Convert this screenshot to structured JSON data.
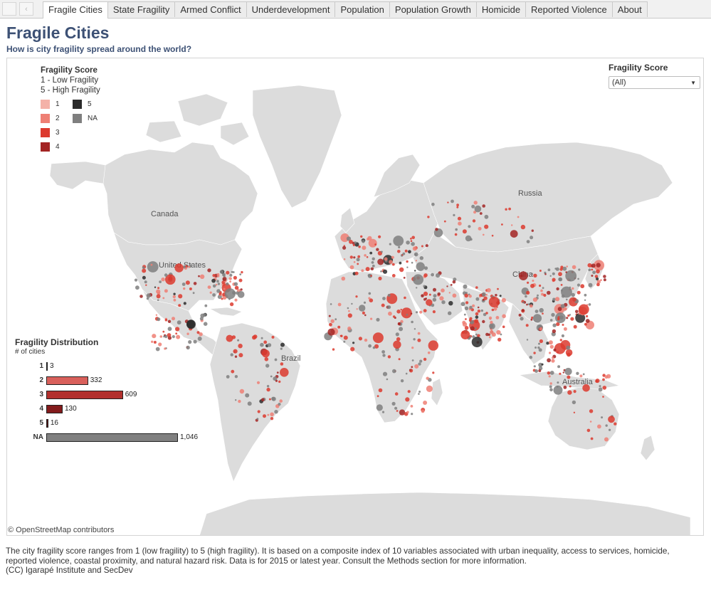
{
  "tabs": {
    "prev_label": "‹",
    "items": [
      {
        "label": "Fragile Cities",
        "active": true
      },
      {
        "label": "State Fragility",
        "active": false
      },
      {
        "label": "Armed Conflict",
        "active": false
      },
      {
        "label": "Underdevelopment",
        "active": false
      },
      {
        "label": "Population",
        "active": false
      },
      {
        "label": "Population Growth",
        "active": false
      },
      {
        "label": "Homicide",
        "active": false
      },
      {
        "label": "Reported Violence",
        "active": false
      },
      {
        "label": "About",
        "active": false
      }
    ]
  },
  "header": {
    "title": "Fragile Cities",
    "subtitle": "How is city fragility spread around the world?"
  },
  "legend": {
    "title": "Fragility Score",
    "line1": "1 - Low Fragility",
    "line2": "5 - High Fragility",
    "items": [
      {
        "label": "1",
        "color": "#f4b2a8"
      },
      {
        "label": "2",
        "color": "#ee7f74"
      },
      {
        "label": "3",
        "color": "#dc3a2e"
      },
      {
        "label": "4",
        "color": "#a32423"
      },
      {
        "label": "5",
        "color": "#2b2b2b"
      },
      {
        "label": "NA",
        "color": "#7f7f7f"
      }
    ]
  },
  "filter": {
    "title": "Fragility Score",
    "selected": "(All)"
  },
  "map": {
    "labels": {
      "canada": "Canada",
      "united_states": "United States",
      "russia": "Russia",
      "china": "China",
      "brazil": "Brazil",
      "australia": "Australia"
    },
    "attribution": "© OpenStreetMap contributors"
  },
  "distribution": {
    "title": "Fragility Distribution",
    "subtitle": "# of cities"
  },
  "chart_data": {
    "type": "bar",
    "orientation": "horizontal",
    "title": "Fragility Distribution",
    "xlabel": "# of cities",
    "categories": [
      "1",
      "2",
      "3",
      "4",
      "5",
      "NA"
    ],
    "values": [
      3,
      332,
      609,
      130,
      16,
      1046
    ],
    "value_labels": [
      "3",
      "332",
      "609",
      "130",
      "16",
      "1,046"
    ],
    "colors": [
      "#f4b2a8",
      "#d9605b",
      "#b2302d",
      "#831b1c",
      "#5a1212",
      "#808080"
    ]
  },
  "footer": {
    "line1": "The city fragility score ranges from 1 (low fragility) to 5 (high fragility). It is based on a composite index of 10 variables associated with urban inequality, access to services, homicide,",
    "line2": "reported violence, coastal proximity, and natural hazard risk. Data is for 2015 or latest year. Consult the Methods section for more information.",
    "line3": "(CC) Igarapé Institute and SecDev"
  }
}
